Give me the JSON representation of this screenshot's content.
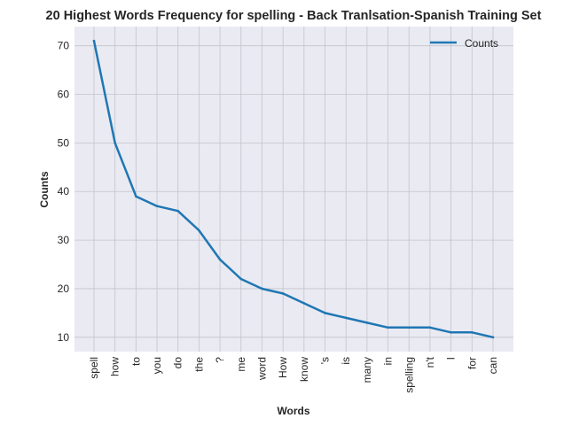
{
  "chart_data": {
    "type": "line",
    "title": "20 Highest Words Frequency for spelling - Back Tranlsation-Spanish Training Set",
    "xlabel": "Words",
    "ylabel": "Counts",
    "categories": [
      "spell",
      "how",
      "to",
      "you",
      "do",
      "the",
      "?",
      "me",
      "word",
      "How",
      "know",
      "'s",
      "is",
      "many",
      "in",
      "spelling",
      "n't",
      "I",
      "for",
      "can"
    ],
    "series": [
      {
        "name": "Counts",
        "values": [
          71,
          50,
          39,
          37,
          36,
          32,
          26,
          22,
          20,
          19,
          17,
          15,
          14,
          13,
          12,
          12,
          12,
          11,
          11,
          10
        ],
        "color": "#1f77b4"
      }
    ],
    "ylim": [
      7.05,
      73.95
    ],
    "yticks": [
      10,
      20,
      30,
      40,
      50,
      60,
      70
    ],
    "grid": true,
    "legend_position": "top-right",
    "colors": {
      "background": "#eaeaf2",
      "grid": "#c2c4cc",
      "line": "#1f77b4"
    }
  }
}
